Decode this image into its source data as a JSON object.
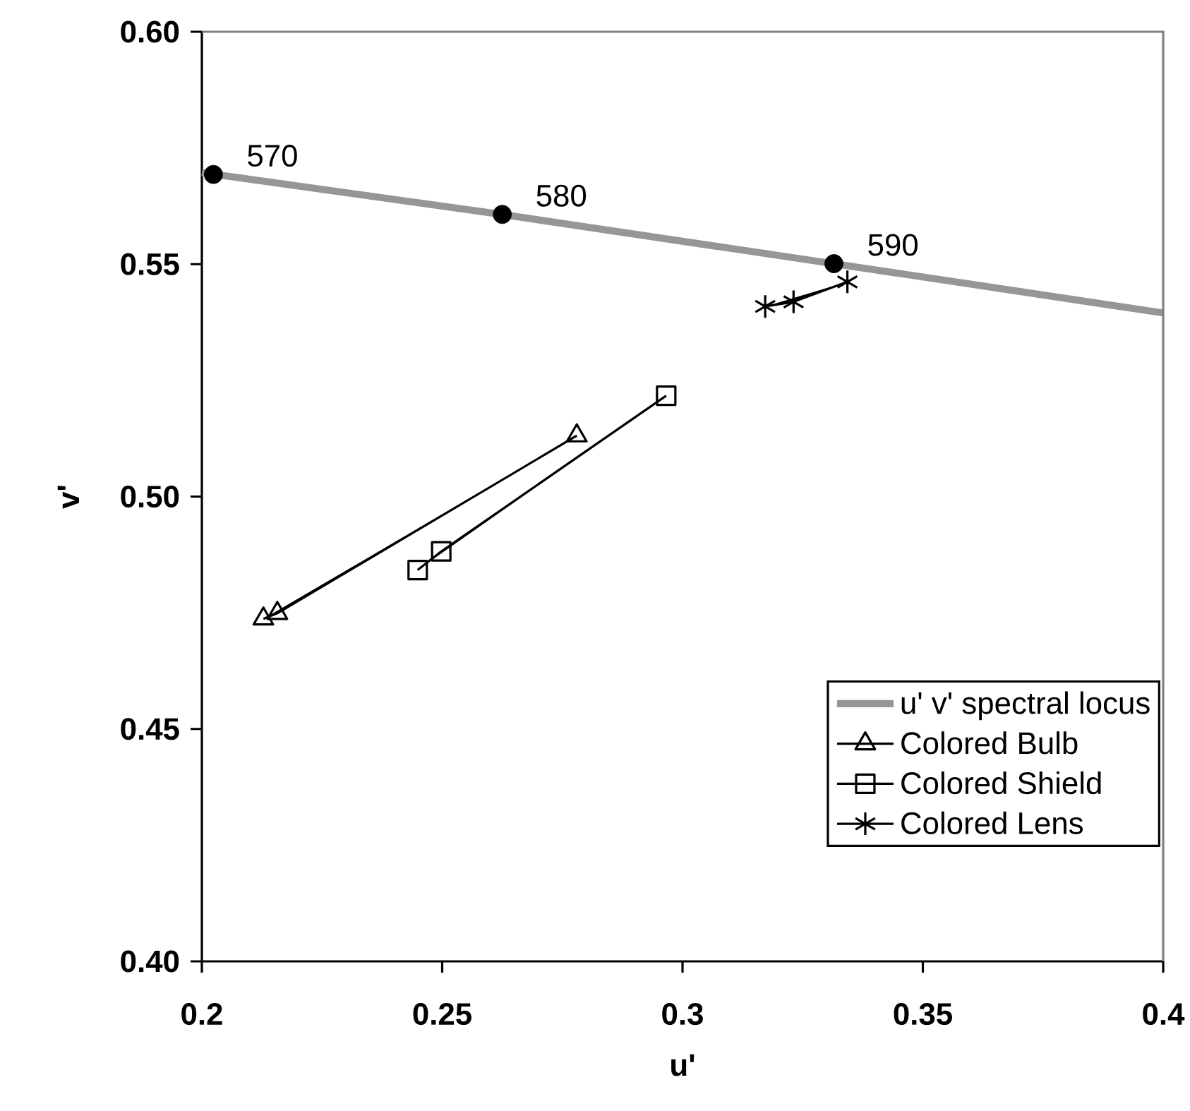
{
  "chart_data": {
    "type": "line",
    "xlabel": "u'",
    "ylabel": "v'",
    "xlim": [
      0.2,
      0.4
    ],
    "ylim": [
      0.4,
      0.6
    ],
    "xticks": [
      0.2,
      0.25,
      0.3,
      0.35,
      0.4
    ],
    "yticks": [
      {
        "value": 0.4,
        "label": "0.40"
      },
      {
        "value": 0.45,
        "label": "0.45"
      },
      {
        "value": 0.5,
        "label": "0.50"
      },
      {
        "value": 0.55,
        "label": "0.55"
      },
      {
        "value": 0.6,
        "label": "0.60"
      }
    ],
    "grid": false,
    "legend": "bottom right",
    "series": [
      {
        "name": "u' v' spectral locus",
        "type": "line",
        "color": "#969696",
        "marker": "none",
        "x": [
          0.2,
          0.2624,
          0.3315,
          0.4
        ],
        "values": [
          0.5697,
          0.5607,
          0.5501,
          0.5395
        ]
      },
      {
        "type": "scatter",
        "color": "#000000",
        "marker": "circle",
        "x": [
          0.2024,
          0.2625,
          0.3315
        ],
        "values": [
          0.5693,
          0.5607,
          0.5501
        ]
      },
      {
        "name": "Colored Bulb",
        "type": "line",
        "color": "#000000",
        "marker": "triangle",
        "x": [
          0.2128,
          0.2157,
          0.278
        ],
        "values": [
          0.4737,
          0.4749,
          0.5131
        ]
      },
      {
        "name": "Colored Shield",
        "type": "line",
        "color": "#000000",
        "marker": "square",
        "x": [
          0.2449,
          0.2498,
          0.2966
        ],
        "values": [
          0.4842,
          0.4882,
          0.5217
        ]
      },
      {
        "name": "Colored Lens",
        "type": "line",
        "color": "#000000",
        "marker": "cross",
        "x": [
          0.3172,
          0.3231,
          0.3343
        ],
        "values": [
          0.5409,
          0.5419,
          0.5462
        ]
      }
    ],
    "annotations": [
      {
        "text": "570",
        "x": 0.2024,
        "y": 0.5693
      },
      {
        "text": "580",
        "x": 0.2625,
        "y": 0.5607
      },
      {
        "text": "590",
        "x": 0.3315,
        "y": 0.5501
      }
    ]
  }
}
